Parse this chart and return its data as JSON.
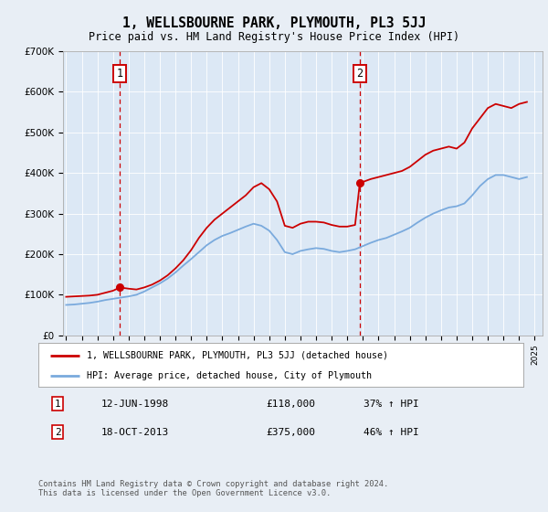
{
  "title": "1, WELLSBOURNE PARK, PLYMOUTH, PL3 5JJ",
  "subtitle": "Price paid vs. HM Land Registry's House Price Index (HPI)",
  "background_color": "#e8eef5",
  "plot_bg_color": "#dce8f5",
  "ylim": [
    0,
    700000
  ],
  "yticks": [
    0,
    100000,
    200000,
    300000,
    400000,
    500000,
    600000,
    700000
  ],
  "ytick_labels": [
    "£0",
    "£100K",
    "£200K",
    "£300K",
    "£400K",
    "£500K",
    "£600K",
    "£700K"
  ],
  "xlim_start": 1994.8,
  "xlim_end": 2025.5,
  "red_line_color": "#cc0000",
  "blue_line_color": "#7aaadd",
  "annotation_line_color": "#cc0000",
  "purchase1_x": 1998.44,
  "purchase1_y": 118000,
  "purchase1_label": "1",
  "purchase1_date": "12-JUN-1998",
  "purchase1_price": "£118,000",
  "purchase1_hpi": "37% ↑ HPI",
  "purchase2_x": 2013.8,
  "purchase2_y": 375000,
  "purchase2_label": "2",
  "purchase2_date": "18-OCT-2013",
  "purchase2_price": "£375,000",
  "purchase2_hpi": "46% ↑ HPI",
  "legend_label_red": "1, WELLSBOURNE PARK, PLYMOUTH, PL3 5JJ (detached house)",
  "legend_label_blue": "HPI: Average price, detached house, City of Plymouth",
  "footnote": "Contains HM Land Registry data © Crown copyright and database right 2024.\nThis data is licensed under the Open Government Licence v3.0.",
  "red_x": [
    1995.0,
    1995.5,
    1996.0,
    1996.5,
    1997.0,
    1997.5,
    1998.0,
    1998.44,
    1999.0,
    1999.5,
    2000.0,
    2000.5,
    2001.0,
    2001.5,
    2002.0,
    2002.5,
    2003.0,
    2003.5,
    2004.0,
    2004.5,
    2005.0,
    2005.5,
    2006.0,
    2006.5,
    2007.0,
    2007.5,
    2008.0,
    2008.5,
    2009.0,
    2009.5,
    2010.0,
    2010.5,
    2011.0,
    2011.5,
    2012.0,
    2012.5,
    2013.0,
    2013.5,
    2013.8,
    2014.0,
    2014.5,
    2015.0,
    2015.5,
    2016.0,
    2016.5,
    2017.0,
    2017.5,
    2018.0,
    2018.5,
    2019.0,
    2019.5,
    2020.0,
    2020.5,
    2021.0,
    2021.5,
    2022.0,
    2022.5,
    2023.0,
    2023.5,
    2024.0,
    2024.5
  ],
  "red_y": [
    95000,
    96000,
    97000,
    98000,
    100000,
    105000,
    110000,
    118000,
    115000,
    113000,
    118000,
    125000,
    135000,
    148000,
    165000,
    185000,
    210000,
    240000,
    265000,
    285000,
    300000,
    315000,
    330000,
    345000,
    365000,
    375000,
    360000,
    330000,
    270000,
    265000,
    275000,
    280000,
    280000,
    278000,
    272000,
    268000,
    268000,
    272000,
    375000,
    378000,
    385000,
    390000,
    395000,
    400000,
    405000,
    415000,
    430000,
    445000,
    455000,
    460000,
    465000,
    460000,
    475000,
    510000,
    535000,
    560000,
    570000,
    565000,
    560000,
    570000,
    575000
  ],
  "blue_x": [
    1995.0,
    1995.5,
    1996.0,
    1996.5,
    1997.0,
    1997.5,
    1998.0,
    1998.5,
    1999.0,
    1999.5,
    2000.0,
    2000.5,
    2001.0,
    2001.5,
    2002.0,
    2002.5,
    2003.0,
    2003.5,
    2004.0,
    2004.5,
    2005.0,
    2005.5,
    2006.0,
    2006.5,
    2007.0,
    2007.5,
    2008.0,
    2008.5,
    2009.0,
    2009.5,
    2010.0,
    2010.5,
    2011.0,
    2011.5,
    2012.0,
    2012.5,
    2013.0,
    2013.5,
    2014.0,
    2014.5,
    2015.0,
    2015.5,
    2016.0,
    2016.5,
    2017.0,
    2017.5,
    2018.0,
    2018.5,
    2019.0,
    2019.5,
    2020.0,
    2020.5,
    2021.0,
    2021.5,
    2022.0,
    2022.5,
    2023.0,
    2023.5,
    2024.0,
    2024.5
  ],
  "blue_y": [
    75000,
    76000,
    78000,
    80000,
    83000,
    87000,
    90000,
    93000,
    96000,
    100000,
    108000,
    118000,
    128000,
    140000,
    155000,
    172000,
    188000,
    205000,
    222000,
    235000,
    245000,
    252000,
    260000,
    268000,
    275000,
    270000,
    258000,
    235000,
    205000,
    200000,
    208000,
    212000,
    215000,
    213000,
    208000,
    205000,
    208000,
    212000,
    220000,
    228000,
    235000,
    240000,
    248000,
    256000,
    265000,
    278000,
    290000,
    300000,
    308000,
    315000,
    318000,
    325000,
    345000,
    368000,
    385000,
    395000,
    395000,
    390000,
    385000,
    390000
  ]
}
